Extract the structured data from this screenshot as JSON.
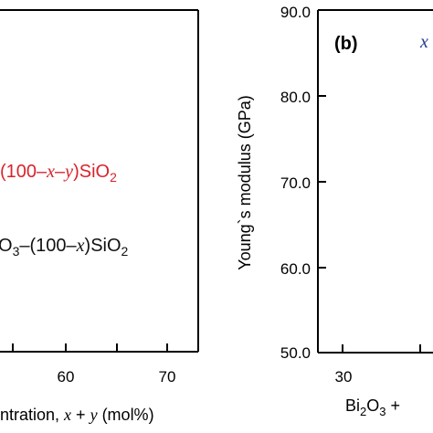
{
  "chart_data": [
    {
      "panel": "a",
      "type": "line",
      "xlabel_visible": "ntration, x + y (mol%)",
      "x_ticks": [
        "60",
        "70"
      ],
      "legend": [
        {
          "text": "(100–x–y)SiO₂",
          "color": "#d9232b"
        },
        {
          "text": "O₃–(100–x)SiO₂",
          "color": "#111111"
        }
      ],
      "series": []
    },
    {
      "panel": "b",
      "type": "line",
      "panel_label": "(b)",
      "ylabel": "Young`s modulus (GPa)",
      "ylim": [
        50.0,
        90.0
      ],
      "y_ticks": [
        "50.0",
        "60.0",
        "70.0",
        "80.0",
        "90.0"
      ],
      "x_ticks": [
        "30"
      ],
      "xlabel_visible": "Bi₂O₃ +",
      "legend_fragment": {
        "text": "x",
        "color": "#1f3c8f"
      },
      "series": []
    }
  ]
}
